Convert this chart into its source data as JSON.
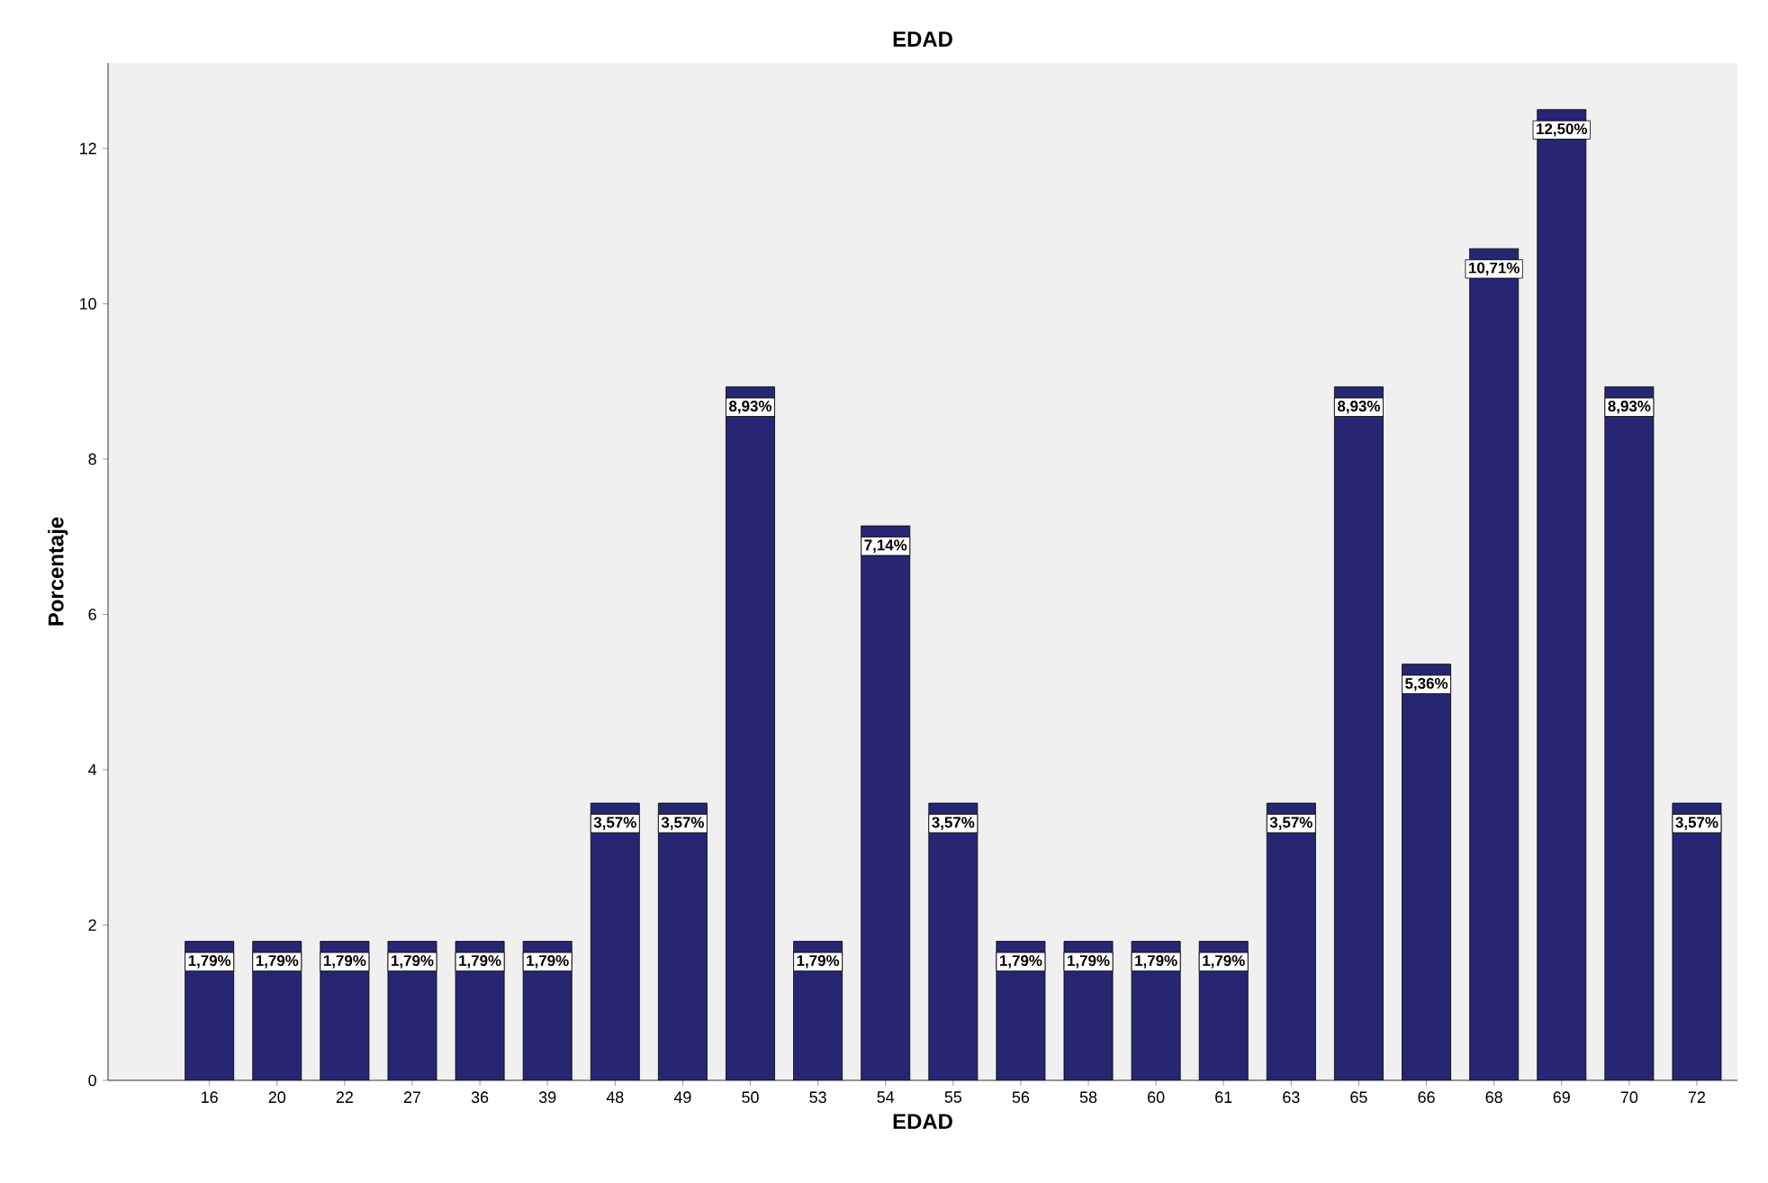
{
  "chart_data": {
    "type": "bar",
    "title": "EDAD",
    "xlabel": "EDAD",
    "ylabel": "Porcentaje",
    "categories": [
      "16",
      "20",
      "22",
      "27",
      "36",
      "39",
      "48",
      "49",
      "50",
      "53",
      "54",
      "55",
      "56",
      "58",
      "60",
      "61",
      "63",
      "65",
      "66",
      "68",
      "69",
      "70",
      "72"
    ],
    "values": [
      1.79,
      1.79,
      1.79,
      1.79,
      1.79,
      1.79,
      3.57,
      3.57,
      8.93,
      1.79,
      7.14,
      3.57,
      1.79,
      1.79,
      1.79,
      1.79,
      3.57,
      8.93,
      5.36,
      10.71,
      12.5,
      8.93,
      3.57
    ],
    "value_labels": [
      "1,79%",
      "1,79%",
      "1,79%",
      "1,79%",
      "1,79%",
      "1,79%",
      "3,57%",
      "3,57%",
      "8,93%",
      "1,79%",
      "7,14%",
      "3,57%",
      "1,79%",
      "1,79%",
      "1,79%",
      "1,79%",
      "3,57%",
      "8,93%",
      "5,36%",
      "10,71%",
      "12,50%",
      "8,93%",
      "3,57%"
    ],
    "color": "#262673",
    "ylim": [
      0,
      13.1
    ],
    "yticks": [
      0,
      2,
      4,
      6,
      8,
      10,
      12
    ]
  }
}
